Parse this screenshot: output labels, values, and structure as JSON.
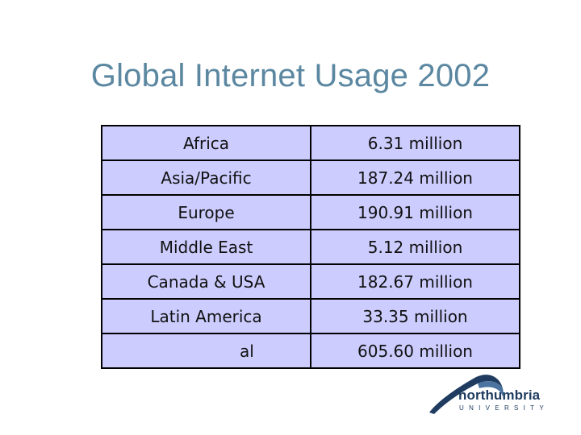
{
  "title": "Global Internet Usage 2002",
  "table": {
    "rows": [
      {
        "region": "Africa",
        "users": "6.31 million"
      },
      {
        "region": "Asia/Pacific",
        "users": "187.24 million"
      },
      {
        "region": "Europe",
        "users": "190.91 million"
      },
      {
        "region": "Middle East",
        "users": "5.12 million"
      },
      {
        "region": "Canada & USA",
        "users": "182.67 million"
      },
      {
        "region": "Latin America",
        "users": "33.35 million"
      },
      {
        "region": "al",
        "users": "605.60 million"
      }
    ]
  },
  "logo": {
    "name": "northumbria",
    "subtitle": "UNIVERSITY",
    "icon": "swoosh-logo-icon"
  },
  "colors": {
    "title": "#5b87a1",
    "cell_background": "#ccccff",
    "border": "#000000",
    "logo": "#1f3c60"
  }
}
